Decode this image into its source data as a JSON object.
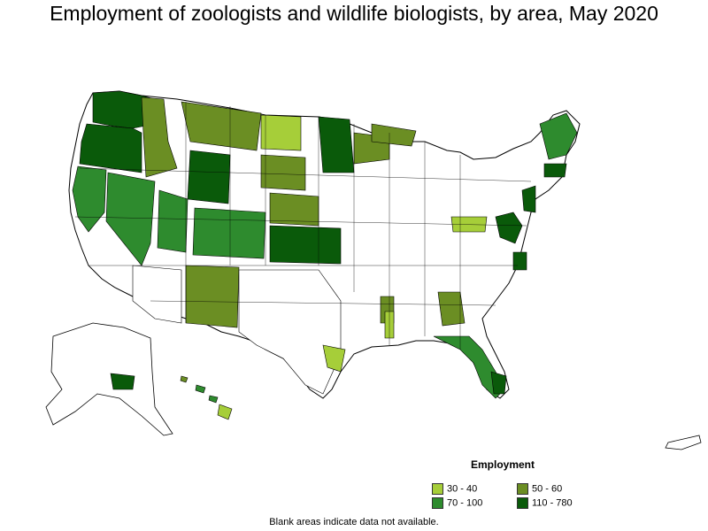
{
  "title": "Employment of zoologists and wildlife biologists, by area, May 2020",
  "legend": {
    "title": "Employment",
    "items": [
      {
        "label": "30 - 40",
        "color": "#a6ce39"
      },
      {
        "label": "50 - 60",
        "color": "#6b8e23"
      },
      {
        "label": "70 - 100",
        "color": "#2e8b2e"
      },
      {
        "label": "110 - 780",
        "color": "#0a5a0a"
      }
    ]
  },
  "note": "Blank areas indicate data not available."
}
